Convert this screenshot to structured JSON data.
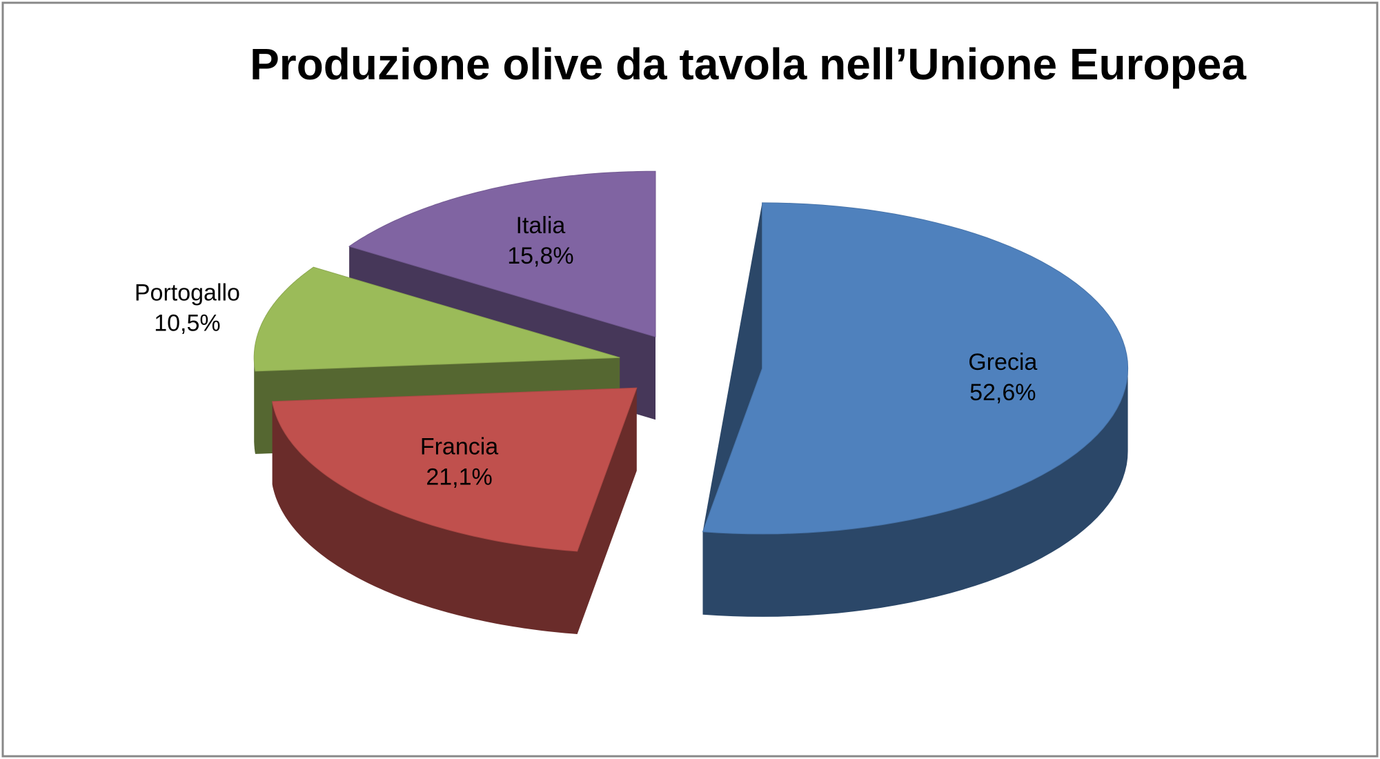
{
  "chart_data": {
    "type": "pie3d",
    "title": "Produzione olive da tavola nell’Unione Europea",
    "categories": [
      "Grecia",
      "Francia",
      "Portogallo",
      "Italia"
    ],
    "values": [
      52.6,
      21.1,
      10.5,
      15.8
    ],
    "value_labels": [
      "52,6%",
      "21,1%",
      "10,5%",
      "15,8%"
    ],
    "colors": [
      "#4f81bd",
      "#c0504d",
      "#9bbb59",
      "#8064a2"
    ]
  }
}
